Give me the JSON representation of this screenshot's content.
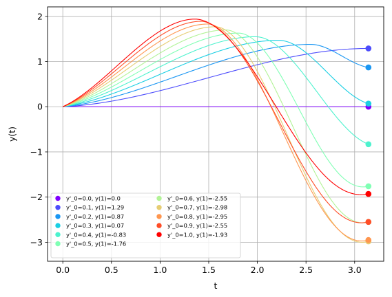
{
  "chart_data": {
    "type": "line",
    "xlabel": "t",
    "ylabel": "y(t)",
    "xlim": [
      -0.157,
      3.299
    ],
    "ylim": [
      -3.42,
      2.21
    ],
    "xticks": [
      0.0,
      0.5,
      1.0,
      1.5,
      2.0,
      2.5,
      3.0
    ],
    "xtick_labels": [
      "0.0",
      "0.5",
      "1.0",
      "1.5",
      "2.0",
      "2.5",
      "3.0"
    ],
    "yticks": [
      -3,
      -2,
      -1,
      0,
      1,
      2
    ],
    "ytick_labels": [
      "−3",
      "−2",
      "−1",
      "0",
      "1",
      "2"
    ],
    "grid": true,
    "legend": {
      "placement": "lower-left",
      "columns": 2
    },
    "x_end": 3.1416,
    "series": [
      {
        "name": "y'_0=0.0, y(1)=0.0",
        "slope": 0.0,
        "end_value": 0.0,
        "color": "#8000ff",
        "peak": [
          0.0,
          0.0
        ]
      },
      {
        "name": "y'_0=0.1, y(1)=1.29",
        "slope": 0.1,
        "end_value": 1.29,
        "color": "#4d4dfc",
        "peak": [
          3.14,
          1.29
        ]
      },
      {
        "name": "y'_0=0.2, y(1)=0.87",
        "slope": 0.2,
        "end_value": 0.87,
        "color": "#1996f3",
        "peak": [
          2.55,
          1.38
        ]
      },
      {
        "name": "y'_0=0.3, y(1)=0.07",
        "slope": 0.3,
        "end_value": 0.07,
        "color": "#1acfe3",
        "peak": [
          2.22,
          1.47
        ]
      },
      {
        "name": "y'_0=0.4, y(1)=-0.83",
        "slope": 0.4,
        "end_value": -0.83,
        "color": "#4cf2ce",
        "peak": [
          1.98,
          1.55
        ]
      },
      {
        "name": "y'_0=0.5, y(1)=-1.76",
        "slope": 0.5,
        "end_value": -1.76,
        "color": "#80ffb4",
        "peak": [
          1.81,
          1.63
        ]
      },
      {
        "name": "y'_0=0.6, y(1)=-2.55",
        "slope": 0.6,
        "end_value": -2.55,
        "color": "#b2f396",
        "peak": [
          1.68,
          1.7
        ]
      },
      {
        "name": "y'_0=0.7, y(1)=-2.98",
        "slope": 0.7,
        "end_value": -2.98,
        "color": "#e6cd73",
        "peak": [
          1.57,
          1.77
        ]
      },
      {
        "name": "y'_0=0.8, y(1)=-2.95",
        "slope": 0.8,
        "end_value": -2.95,
        "color": "#ff964f",
        "peak": [
          1.49,
          1.83
        ]
      },
      {
        "name": "y'_0=0.9, y(1)=-2.55",
        "slope": 0.9,
        "end_value": -2.55,
        "color": "#ff4d27",
        "peak": [
          1.42,
          1.89
        ]
      },
      {
        "name": "y'_0=1.0, y(1)=-1.93",
        "slope": 1.0,
        "end_value": -1.93,
        "color": "#ff0000",
        "peak": [
          1.36,
          1.94
        ]
      }
    ]
  }
}
